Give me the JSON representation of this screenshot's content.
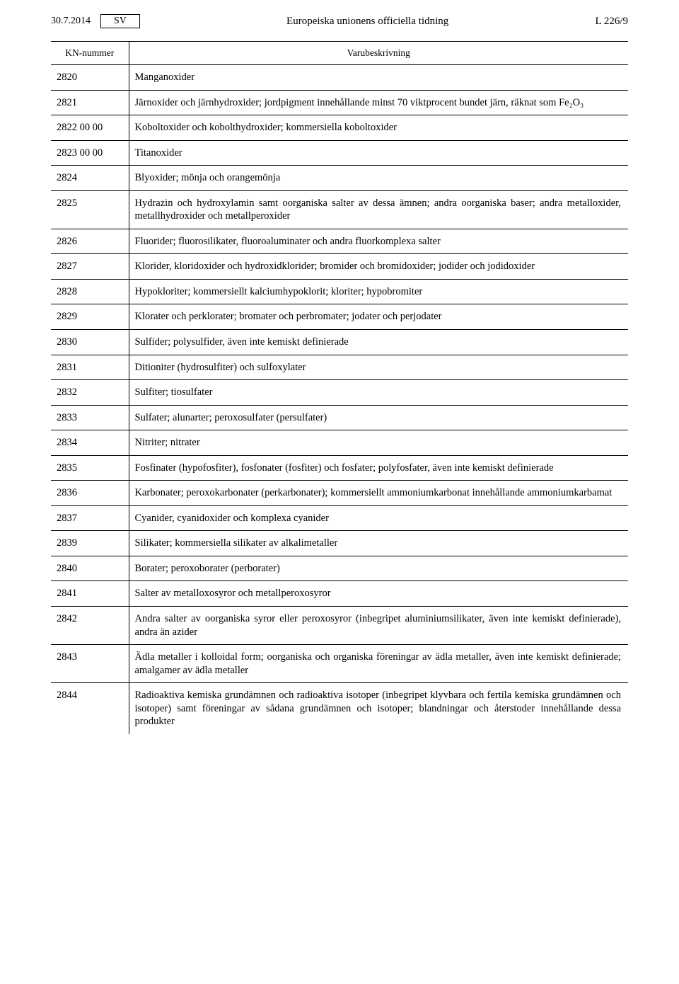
{
  "header": {
    "date": "30.7.2014",
    "lang": "SV",
    "journal_title": "Europeiska unionens officiella tidning",
    "page_ref": "L 226/9"
  },
  "table": {
    "columns": {
      "cn": "KN-nummer",
      "desc": "Varubeskrivning"
    },
    "rows": [
      {
        "cn": "2820",
        "desc": "Manganoxider"
      },
      {
        "cn": "2821",
        "desc": "Järnoxider och järnhydroxider; jordpigment innehållande minst 70 viktprocent bundet järn, räknat som Fe₂O₃"
      },
      {
        "cn": "2822 00 00",
        "desc": "Koboltoxider och kobolthydroxider; kommersiella koboltoxider"
      },
      {
        "cn": "2823 00 00",
        "desc": "Titanoxider"
      },
      {
        "cn": "2824",
        "desc": "Blyoxider; mönja och orangemönja"
      },
      {
        "cn": "2825",
        "desc": "Hydrazin och hydroxylamin samt oorganiska salter av dessa ämnen; andra oorganiska baser; andra metalloxider, metallhydroxider och metallperoxider"
      },
      {
        "cn": "2826",
        "desc": "Fluorider; fluorosilikater, fluoroaluminater och andra fluorkomplexa salter"
      },
      {
        "cn": "2827",
        "desc": "Klorider, kloridoxider och hydroxidklorider; bromider och bromidoxider; jodider och jodidoxider"
      },
      {
        "cn": "2828",
        "desc": "Hypokloriter; kommersiellt kalciumhypoklorit; kloriter; hypobromiter"
      },
      {
        "cn": "2829",
        "desc": "Klorater och perklorater; bromater och perbromater; jodater och perjodater"
      },
      {
        "cn": "2830",
        "desc": "Sulfider; polysulfider, även inte kemiskt definierade"
      },
      {
        "cn": "2831",
        "desc": "Ditioniter (hydrosulfiter) och sulfoxylater"
      },
      {
        "cn": "2832",
        "desc": "Sulfiter; tiosulfater"
      },
      {
        "cn": "2833",
        "desc": "Sulfater; alunarter; peroxosulfater (persulfater)"
      },
      {
        "cn": "2834",
        "desc": "Nitriter; nitrater"
      },
      {
        "cn": "2835",
        "desc": "Fosfinater (hypofosfiter), fosfonater (fosfiter) och fosfater; polyfosfater, även inte kemiskt definierade"
      },
      {
        "cn": "2836",
        "desc": "Karbonater; peroxokarbonater (perkarbonater); kommersiellt ammoniumkarbonat innehållande ammoniumkarbamat"
      },
      {
        "cn": "2837",
        "desc": "Cyanider, cyanidoxider och komplexa cyanider"
      },
      {
        "cn": "2839",
        "desc": "Silikater; kommersiella silikater av alkalimetaller"
      },
      {
        "cn": "2840",
        "desc": "Borater; peroxoborater (perborater)"
      },
      {
        "cn": "2841",
        "desc": "Salter av metalloxosyror och metallperoxosyror"
      },
      {
        "cn": "2842",
        "desc": "Andra salter av oorganiska syror eller peroxosyror (inbegripet aluminiumsilikater, även inte kemiskt definierade), andra än azider"
      },
      {
        "cn": "2843",
        "desc": "Ädla metaller i kolloidal form; oorganiska och organiska föreningar av ädla metaller, även inte kemiskt definierade; amalgamer av ädla metaller"
      },
      {
        "cn": "2844",
        "desc": "Radioaktiva kemiska grundämnen och radioaktiva isotoper (inbegripet klyvbara och fertila kemiska grundämnen och isotoper) samt föreningar av sådana grundämnen och isotoper; blandningar och återstoder innehållande dessa produkter"
      }
    ]
  }
}
